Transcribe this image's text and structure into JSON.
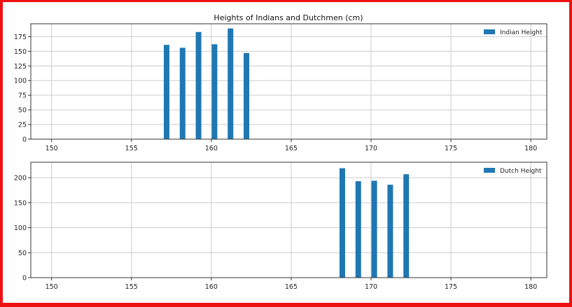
{
  "figure": {
    "title": "Heights of Indians and Dutchmen (cm)"
  },
  "colors": {
    "bar": "#1f77b4",
    "border": "#ee1111",
    "grid": "#cccccc",
    "axis": "#333333"
  },
  "chart_data": [
    {
      "type": "bar",
      "title": "Heights of Indians and Dutchmen (cm)",
      "xlabel": "",
      "ylabel": "",
      "xlim": [
        148.7,
        181
      ],
      "ylim": [
        0,
        197
      ],
      "xticks": [
        150,
        155,
        160,
        165,
        170,
        175,
        180
      ],
      "yticks": [
        0,
        25,
        50,
        75,
        100,
        125,
        150,
        175
      ],
      "grid": true,
      "legend_position": "top-right",
      "series": [
        {
          "name": "Indian Height",
          "x": [
            157.2,
            158.2,
            159.2,
            160.2,
            161.2,
            162.2
          ],
          "values": [
            161,
            156,
            183,
            162,
            189,
            147
          ]
        }
      ]
    },
    {
      "type": "bar",
      "title": "",
      "xlabel": "",
      "ylabel": "",
      "xlim": [
        148.7,
        181
      ],
      "ylim": [
        0,
        231
      ],
      "xticks": [
        150,
        155,
        160,
        165,
        170,
        175,
        180
      ],
      "yticks": [
        0,
        50,
        100,
        150,
        200
      ],
      "grid": true,
      "legend_position": "top-right",
      "series": [
        {
          "name": "Dutch Height",
          "x": [
            168.2,
            169.2,
            170.2,
            171.2,
            172.2
          ],
          "values": [
            219,
            193,
            194,
            186,
            207
          ]
        }
      ]
    }
  ]
}
